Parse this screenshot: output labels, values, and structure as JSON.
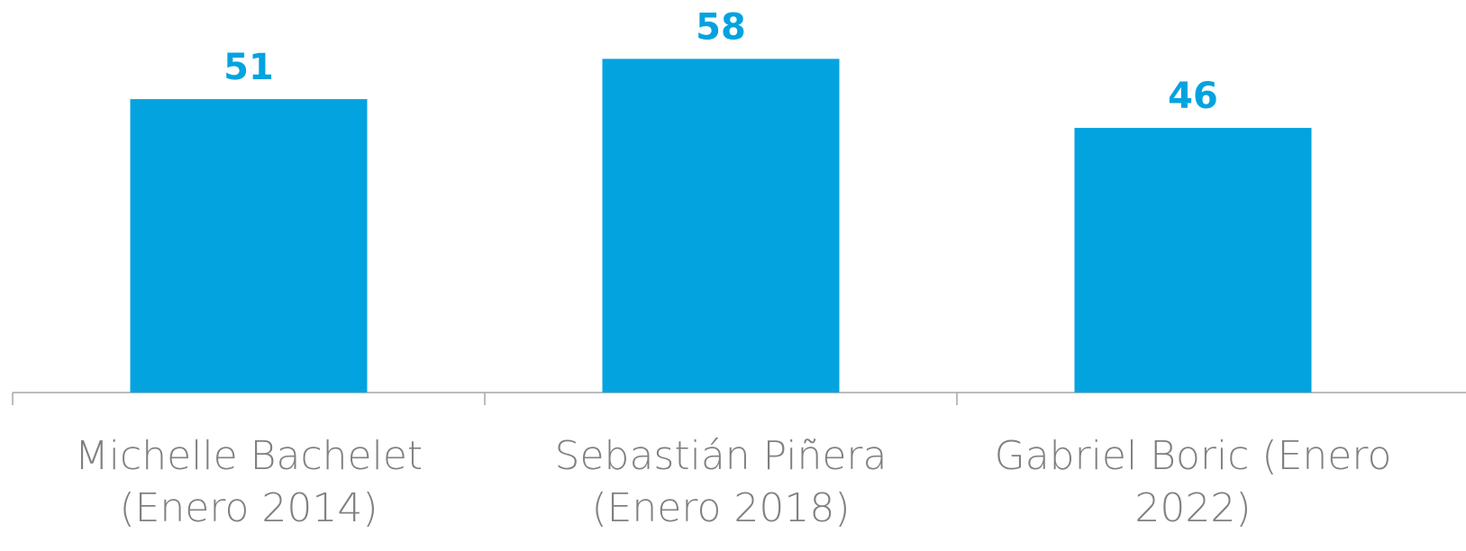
{
  "chart_data": {
    "type": "bar",
    "categories": [
      "Michelle Bachelet (Enero 2014)",
      "Sebastián Piñera (Enero 2018)",
      "Gabriel Boric (Enero 2022)"
    ],
    "values": [
      51,
      58,
      46
    ],
    "color": "#03a3e0"
  }
}
